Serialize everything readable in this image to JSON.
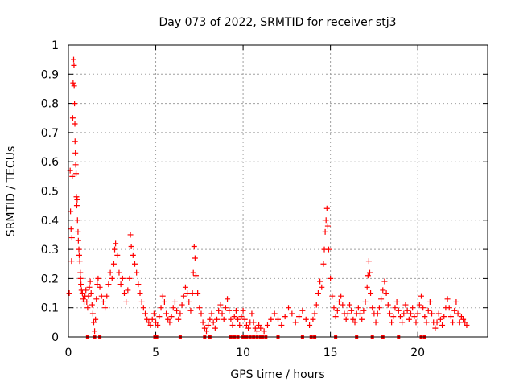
{
  "chart_data": {
    "type": "scatter",
    "title": "Day 073 of 2022, SRMTID for receiver stj3",
    "xlabel": "GPS time / hours",
    "ylabel": "SRMTID / TECUs",
    "xlim": [
      0,
      24
    ],
    "ylim": [
      0,
      1
    ],
    "xticks": [
      0,
      5,
      10,
      15,
      20
    ],
    "xtick_labels": [
      "0",
      "5",
      "10",
      "15",
      "20"
    ],
    "yticks": [
      0,
      0.1,
      0.2,
      0.3,
      0.4,
      0.5,
      0.6,
      0.7,
      0.8,
      0.9,
      1
    ],
    "ytick_labels": [
      "0",
      "0.1",
      "0.2",
      "0.3",
      "0.4",
      "0.5",
      "0.6",
      "0.7",
      "0.8",
      "0.9",
      "1"
    ],
    "grid": true,
    "series": [
      {
        "name": "SRMTID",
        "color": "#ff0000",
        "marker": "plus",
        "points": [
          [
            0.05,
            0.15
          ],
          [
            0.1,
            0.57
          ],
          [
            0.12,
            0.43
          ],
          [
            0.15,
            0.37
          ],
          [
            0.18,
            0.26
          ],
          [
            0.2,
            0.34
          ],
          [
            0.22,
            0.55
          ],
          [
            0.25,
            0.75
          ],
          [
            0.27,
            0.87
          ],
          [
            0.3,
            0.95
          ],
          [
            0.32,
            0.93
          ],
          [
            0.33,
            0.86
          ],
          [
            0.35,
            0.8
          ],
          [
            0.37,
            0.73
          ],
          [
            0.38,
            0.67
          ],
          [
            0.4,
            0.63
          ],
          [
            0.42,
            0.59
          ],
          [
            0.44,
            0.56
          ],
          [
            0.46,
            0.48
          ],
          [
            0.48,
            0.45
          ],
          [
            0.5,
            0.47
          ],
          [
            0.52,
            0.4
          ],
          [
            0.55,
            0.36
          ],
          [
            0.57,
            0.33
          ],
          [
            0.6,
            0.3
          ],
          [
            0.62,
            0.28
          ],
          [
            0.65,
            0.26
          ],
          [
            0.68,
            0.22
          ],
          [
            0.7,
            0.2
          ],
          [
            0.72,
            0.18
          ],
          [
            0.75,
            0.16
          ],
          [
            0.8,
            0.15
          ],
          [
            0.85,
            0.13
          ],
          [
            0.9,
            0.12
          ],
          [
            0.95,
            0.14
          ],
          [
            1.0,
            0.16
          ],
          [
            1.05,
            0.12
          ],
          [
            1.1,
            0.1
          ],
          [
            1.15,
            0.14
          ],
          [
            1.2,
            0.17
          ],
          [
            1.25,
            0.19
          ],
          [
            1.3,
            0.15
          ],
          [
            1.35,
            0.11
          ],
          [
            1.4,
            0.08
          ],
          [
            1.45,
            0.05
          ],
          [
            1.5,
            0.02
          ],
          [
            1.55,
            0.06
          ],
          [
            1.6,
            0.13
          ],
          [
            1.65,
            0.18
          ],
          [
            1.7,
            0.2
          ],
          [
            1.8,
            0.17
          ],
          [
            1.9,
            0.14
          ],
          [
            2.0,
            0.12
          ],
          [
            2.1,
            0.1
          ],
          [
            2.2,
            0.14
          ],
          [
            2.3,
            0.18
          ],
          [
            2.4,
            0.22
          ],
          [
            2.5,
            0.2
          ],
          [
            2.6,
            0.25
          ],
          [
            2.65,
            0.3
          ],
          [
            2.7,
            0.32
          ],
          [
            2.8,
            0.28
          ],
          [
            2.9,
            0.22
          ],
          [
            3.0,
            0.18
          ],
          [
            3.1,
            0.2
          ],
          [
            3.2,
            0.15
          ],
          [
            3.3,
            0.12
          ],
          [
            3.4,
            0.16
          ],
          [
            3.5,
            0.2
          ],
          [
            3.55,
            0.35
          ],
          [
            3.6,
            0.31
          ],
          [
            3.7,
            0.28
          ],
          [
            3.8,
            0.25
          ],
          [
            3.9,
            0.22
          ],
          [
            4.0,
            0.18
          ],
          [
            4.1,
            0.15
          ],
          [
            4.2,
            0.12
          ],
          [
            4.3,
            0.1
          ],
          [
            4.4,
            0.08
          ],
          [
            4.5,
            0.06
          ],
          [
            4.6,
            0.05
          ],
          [
            4.7,
            0.04
          ],
          [
            4.8,
            0.06
          ],
          [
            4.9,
            0.08
          ],
          [
            5.0,
            0.05
          ],
          [
            5.1,
            0.04
          ],
          [
            5.2,
            0.07
          ],
          [
            5.3,
            0.1
          ],
          [
            5.4,
            0.14
          ],
          [
            5.5,
            0.12
          ],
          [
            5.6,
            0.08
          ],
          [
            5.7,
            0.06
          ],
          [
            5.8,
            0.05
          ],
          [
            5.9,
            0.07
          ],
          [
            6.0,
            0.1
          ],
          [
            6.1,
            0.12
          ],
          [
            6.2,
            0.09
          ],
          [
            6.3,
            0.06
          ],
          [
            6.4,
            0.08
          ],
          [
            6.5,
            0.11
          ],
          [
            6.6,
            0.14
          ],
          [
            6.7,
            0.17
          ],
          [
            6.8,
            0.15
          ],
          [
            6.9,
            0.12
          ],
          [
            7.0,
            0.09
          ],
          [
            7.1,
            0.15
          ],
          [
            7.15,
            0.22
          ],
          [
            7.2,
            0.31
          ],
          [
            7.25,
            0.27
          ],
          [
            7.3,
            0.21
          ],
          [
            7.4,
            0.15
          ],
          [
            7.5,
            0.1
          ],
          [
            7.6,
            0.08
          ],
          [
            7.7,
            0.05
          ],
          [
            7.8,
            0.03
          ],
          [
            7.9,
            0.02
          ],
          [
            8.0,
            0.04
          ],
          [
            8.1,
            0.06
          ],
          [
            8.2,
            0.08
          ],
          [
            8.3,
            0.05
          ],
          [
            8.4,
            0.03
          ],
          [
            8.5,
            0.06
          ],
          [
            8.6,
            0.09
          ],
          [
            8.7,
            0.11
          ],
          [
            8.8,
            0.08
          ],
          [
            8.9,
            0.06
          ],
          [
            9.0,
            0.1
          ],
          [
            9.1,
            0.13
          ],
          [
            9.2,
            0.09
          ],
          [
            9.3,
            0.06
          ],
          [
            9.4,
            0.04
          ],
          [
            9.5,
            0.07
          ],
          [
            9.6,
            0.09
          ],
          [
            9.7,
            0.06
          ],
          [
            9.8,
            0.04
          ],
          [
            9.9,
            0.07
          ],
          [
            10.0,
            0.09
          ],
          [
            10.1,
            0.06
          ],
          [
            10.2,
            0.04
          ],
          [
            10.3,
            0.03
          ],
          [
            10.4,
            0.05
          ],
          [
            10.5,
            0.08
          ],
          [
            10.6,
            0.05
          ],
          [
            10.7,
            0.03
          ],
          [
            10.8,
            0.02
          ],
          [
            10.9,
            0.04
          ],
          [
            11.0,
            0.03
          ],
          [
            11.2,
            0.02
          ],
          [
            11.4,
            0.04
          ],
          [
            11.6,
            0.06
          ],
          [
            11.8,
            0.08
          ],
          [
            12.0,
            0.06
          ],
          [
            12.2,
            0.04
          ],
          [
            12.4,
            0.07
          ],
          [
            12.6,
            0.1
          ],
          [
            12.8,
            0.08
          ],
          [
            13.0,
            0.05
          ],
          [
            13.2,
            0.07
          ],
          [
            13.4,
            0.09
          ],
          [
            13.6,
            0.06
          ],
          [
            13.8,
            0.04
          ],
          [
            14.0,
            0.06
          ],
          [
            14.1,
            0.08
          ],
          [
            14.2,
            0.11
          ],
          [
            14.3,
            0.15
          ],
          [
            14.4,
            0.19
          ],
          [
            14.5,
            0.17
          ],
          [
            14.6,
            0.25
          ],
          [
            14.65,
            0.3
          ],
          [
            14.7,
            0.36
          ],
          [
            14.75,
            0.4
          ],
          [
            14.8,
            0.44
          ],
          [
            14.85,
            0.38
          ],
          [
            14.9,
            0.3
          ],
          [
            15.0,
            0.2
          ],
          [
            15.1,
            0.14
          ],
          [
            15.2,
            0.1
          ],
          [
            15.3,
            0.07
          ],
          [
            15.4,
            0.09
          ],
          [
            15.5,
            0.12
          ],
          [
            15.6,
            0.14
          ],
          [
            15.7,
            0.11
          ],
          [
            15.8,
            0.08
          ],
          [
            15.9,
            0.06
          ],
          [
            16.0,
            0.08
          ],
          [
            16.1,
            0.11
          ],
          [
            16.2,
            0.09
          ],
          [
            16.3,
            0.06
          ],
          [
            16.4,
            0.05
          ],
          [
            16.5,
            0.08
          ],
          [
            16.6,
            0.1
          ],
          [
            16.7,
            0.08
          ],
          [
            16.8,
            0.06
          ],
          [
            16.9,
            0.09
          ],
          [
            17.0,
            0.12
          ],
          [
            17.1,
            0.17
          ],
          [
            17.15,
            0.21
          ],
          [
            17.2,
            0.26
          ],
          [
            17.25,
            0.22
          ],
          [
            17.3,
            0.15
          ],
          [
            17.4,
            0.1
          ],
          [
            17.5,
            0.08
          ],
          [
            17.6,
            0.05
          ],
          [
            17.7,
            0.08
          ],
          [
            17.8,
            0.1
          ],
          [
            17.9,
            0.13
          ],
          [
            18.0,
            0.16
          ],
          [
            18.1,
            0.19
          ],
          [
            18.2,
            0.15
          ],
          [
            18.3,
            0.11
          ],
          [
            18.4,
            0.08
          ],
          [
            18.5,
            0.05
          ],
          [
            18.6,
            0.07
          ],
          [
            18.7,
            0.1
          ],
          [
            18.8,
            0.12
          ],
          [
            18.9,
            0.09
          ],
          [
            19.0,
            0.07
          ],
          [
            19.1,
            0.05
          ],
          [
            19.2,
            0.08
          ],
          [
            19.3,
            0.11
          ],
          [
            19.4,
            0.09
          ],
          [
            19.5,
            0.06
          ],
          [
            19.6,
            0.08
          ],
          [
            19.7,
            0.1
          ],
          [
            19.8,
            0.07
          ],
          [
            19.9,
            0.05
          ],
          [
            20.0,
            0.08
          ],
          [
            20.1,
            0.11
          ],
          [
            20.2,
            0.14
          ],
          [
            20.3,
            0.1
          ],
          [
            20.4,
            0.07
          ],
          [
            20.5,
            0.05
          ],
          [
            20.6,
            0.09
          ],
          [
            20.7,
            0.12
          ],
          [
            20.8,
            0.08
          ],
          [
            20.9,
            0.05
          ],
          [
            21.0,
            0.03
          ],
          [
            21.1,
            0.05
          ],
          [
            21.2,
            0.08
          ],
          [
            21.3,
            0.06
          ],
          [
            21.4,
            0.04
          ],
          [
            21.5,
            0.07
          ],
          [
            21.6,
            0.1
          ],
          [
            21.7,
            0.13
          ],
          [
            21.8,
            0.1
          ],
          [
            21.9,
            0.07
          ],
          [
            22.0,
            0.05
          ],
          [
            22.1,
            0.09
          ],
          [
            22.2,
            0.12
          ],
          [
            22.3,
            0.08
          ],
          [
            22.4,
            0.05
          ],
          [
            22.5,
            0.07
          ],
          [
            22.6,
            0.06
          ],
          [
            22.7,
            0.05
          ],
          [
            22.8,
            0.04
          ],
          [
            1.1,
            0.0
          ],
          [
            1.5,
            0.0
          ],
          [
            1.8,
            0.0
          ],
          [
            4.95,
            0.0
          ],
          [
            5.05,
            0.0
          ],
          [
            6.4,
            0.0
          ],
          [
            7.8,
            0.0
          ],
          [
            8.1,
            0.0
          ],
          [
            9.3,
            0.0
          ],
          [
            9.5,
            0.0
          ],
          [
            9.7,
            0.0
          ],
          [
            10.0,
            0.0
          ],
          [
            10.2,
            0.0
          ],
          [
            10.4,
            0.0
          ],
          [
            10.6,
            0.0
          ],
          [
            10.8,
            0.0
          ],
          [
            11.0,
            0.0
          ],
          [
            11.1,
            0.0
          ],
          [
            11.3,
            0.0
          ],
          [
            12.0,
            0.0
          ],
          [
            13.4,
            0.0
          ],
          [
            13.9,
            0.0
          ],
          [
            14.1,
            0.0
          ],
          [
            15.3,
            0.0
          ],
          [
            16.5,
            0.0
          ],
          [
            17.4,
            0.0
          ],
          [
            18.0,
            0.0
          ],
          [
            18.9,
            0.0
          ],
          [
            20.2,
            0.0
          ],
          [
            20.4,
            0.0
          ]
        ]
      }
    ]
  }
}
